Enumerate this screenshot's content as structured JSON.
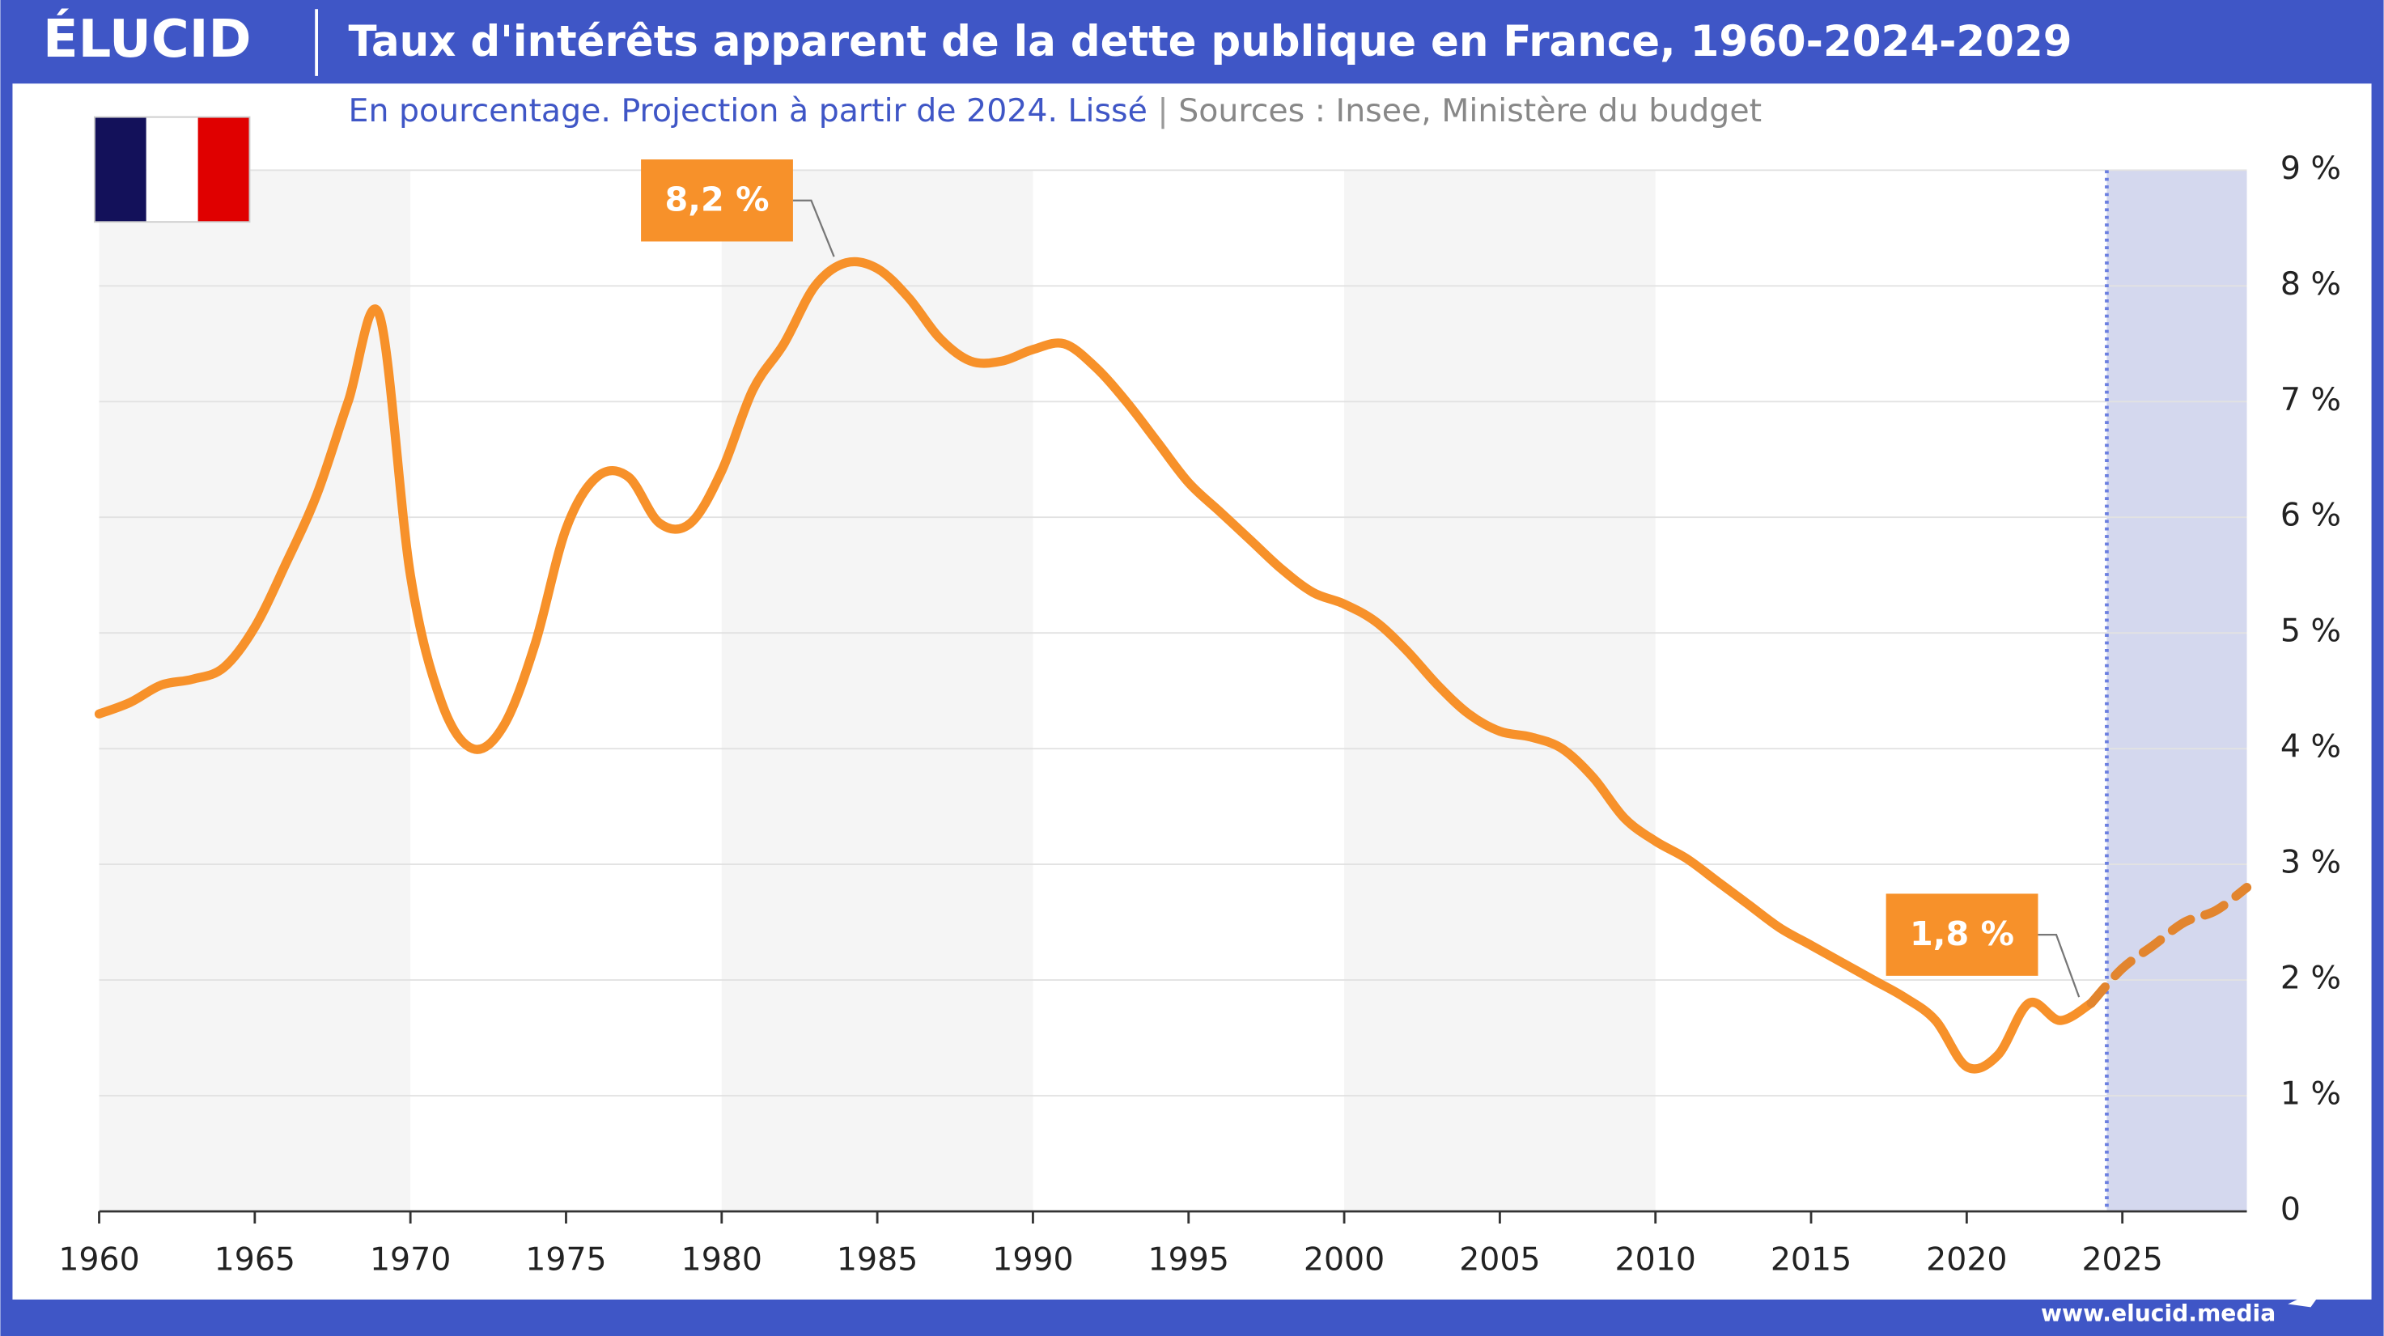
{
  "brand": "ÉLUCID",
  "footer": "www.elucid.media",
  "chart_data": {
    "type": "line",
    "title": "Taux d'intérêts apparent de la dette publique en France, 1960-2024-2029",
    "subtitle": "En pourcentage. Projection à partir de 2024. Lissé",
    "source": "Sources : Insee, Ministère du budget",
    "x": [
      1960,
      1961,
      1962,
      1963,
      1964,
      1965,
      1966,
      1967,
      1968,
      1969,
      1970,
      1971,
      1972,
      1973,
      1974,
      1975,
      1976,
      1977,
      1978,
      1979,
      1980,
      1981,
      1982,
      1983,
      1984,
      1985,
      1986,
      1987,
      1988,
      1989,
      1990,
      1991,
      1992,
      1993,
      1994,
      1995,
      1996,
      1997,
      1998,
      1999,
      2000,
      2001,
      2002,
      2003,
      2004,
      2005,
      2006,
      2007,
      2008,
      2009,
      2010,
      2011,
      2012,
      2013,
      2014,
      2015,
      2016,
      2017,
      2018,
      2019,
      2020,
      2021,
      2022,
      2023,
      2024,
      2025,
      2026,
      2027,
      2028,
      2029
    ],
    "series": [
      {
        "color": "#f7912a",
        "dashed": false,
        "values": [
          4.3,
          4.4,
          4.55,
          4.6,
          4.7,
          5.05,
          5.6,
          6.2,
          7.0,
          7.75,
          5.5,
          4.4,
          4.0,
          4.2,
          4.9,
          5.9,
          6.35,
          6.35,
          5.95,
          5.95,
          6.4,
          7.1,
          7.5,
          8.0,
          8.2,
          8.15,
          7.9,
          7.55,
          7.35,
          7.35,
          7.45,
          7.5,
          7.3,
          7.0,
          6.65,
          6.3,
          6.05,
          5.8,
          5.55,
          5.35,
          5.25,
          5.1,
          4.85,
          4.55,
          4.3,
          4.15,
          4.1,
          4.0,
          3.75,
          3.4,
          3.2,
          3.05,
          2.85,
          2.65,
          2.45,
          2.3,
          2.15,
          2.0,
          1.85,
          1.65,
          1.25,
          1.35,
          1.8,
          1.65,
          1.8,
          null,
          null,
          null,
          null,
          null
        ]
      },
      {
        "color": "#e2852e",
        "dashed": true,
        "values": [
          null,
          null,
          null,
          null,
          null,
          null,
          null,
          null,
          null,
          null,
          null,
          null,
          null,
          null,
          null,
          null,
          null,
          null,
          null,
          null,
          null,
          null,
          null,
          null,
          null,
          null,
          null,
          null,
          null,
          null,
          null,
          null,
          null,
          null,
          null,
          null,
          null,
          null,
          null,
          null,
          null,
          null,
          null,
          null,
          null,
          null,
          null,
          null,
          null,
          null,
          null,
          null,
          null,
          null,
          null,
          null,
          null,
          null,
          null,
          null,
          null,
          null,
          null,
          null,
          1.8,
          2.1,
          2.3,
          2.5,
          2.6,
          2.8
        ]
      }
    ],
    "annotations": [
      {
        "text": "8,2 %",
        "x": 1984,
        "y": 8.2
      },
      {
        "text": "1,8 %",
        "x": 2024,
        "y": 1.8
      }
    ],
    "projection_start": 2024.5,
    "xlim": [
      1960,
      2029
    ],
    "xticks": [
      1960,
      1965,
      1970,
      1975,
      1980,
      1985,
      1990,
      1995,
      2000,
      2005,
      2010,
      2015,
      2020,
      2025
    ],
    "ylim": [
      0,
      9
    ],
    "yticks": [
      {
        "value": 0,
        "label": "0"
      },
      {
        "value": 1,
        "label": "1 %"
      },
      {
        "value": 2,
        "label": "2 %"
      },
      {
        "value": 3,
        "label": "3 %"
      },
      {
        "value": 4,
        "label": "4 %"
      },
      {
        "value": 5,
        "label": "5 %"
      },
      {
        "value": 6,
        "label": "6 %"
      },
      {
        "value": 7,
        "label": "7 %"
      },
      {
        "value": 8,
        "label": "8 %"
      },
      {
        "value": 9,
        "label": "9 %"
      }
    ],
    "grid": true
  }
}
